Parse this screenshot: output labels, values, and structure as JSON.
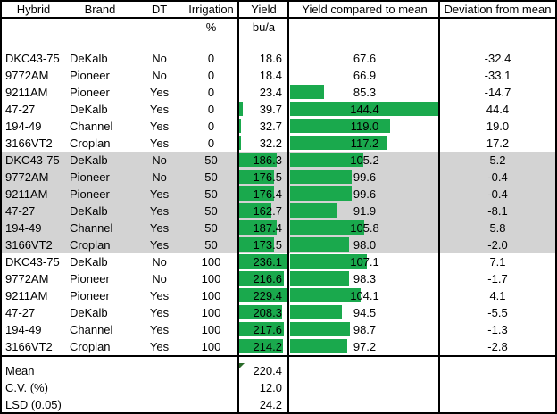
{
  "table": {
    "headers": [
      "Hybrid",
      "Brand",
      "DT",
      "Irrigation",
      "Yield",
      "Yield compared to mean",
      "Deviation from mean"
    ],
    "units": {
      "irrigation": "%",
      "yield": "bu/a"
    },
    "rows": [
      {
        "hybrid": "DKC43-75",
        "brand": "DeKalb",
        "dt": "No",
        "irrigation": "0",
        "yield": "18.6",
        "compared": "67.6",
        "deviation": "-32.4",
        "shaded": false
      },
      {
        "hybrid": "9772AM",
        "brand": "Pioneer",
        "dt": "No",
        "irrigation": "0",
        "yield": "18.4",
        "compared": "66.9",
        "deviation": "-33.1",
        "shaded": false
      },
      {
        "hybrid": "9211AM",
        "brand": "Pioneer",
        "dt": "Yes",
        "irrigation": "0",
        "yield": "23.4",
        "compared": "85.3",
        "deviation": "-14.7",
        "shaded": false
      },
      {
        "hybrid": "47-27",
        "brand": "DeKalb",
        "dt": "Yes",
        "irrigation": "0",
        "yield": "39.7",
        "compared": "144.4",
        "deviation": "44.4",
        "shaded": false
      },
      {
        "hybrid": "194-49",
        "brand": "Channel",
        "dt": "Yes",
        "irrigation": "0",
        "yield": "32.7",
        "compared": "119.0",
        "deviation": "19.0",
        "shaded": false
      },
      {
        "hybrid": "3166VT2",
        "brand": "Croplan",
        "dt": "Yes",
        "irrigation": "0",
        "yield": "32.2",
        "compared": "117.2",
        "deviation": "17.2",
        "shaded": false
      },
      {
        "hybrid": "DKC43-75",
        "brand": "DeKalb",
        "dt": "No",
        "irrigation": "50",
        "yield": "186.3",
        "compared": "105.2",
        "deviation": "5.2",
        "shaded": true
      },
      {
        "hybrid": "9772AM",
        "brand": "Pioneer",
        "dt": "No",
        "irrigation": "50",
        "yield": "176.5",
        "compared": "99.6",
        "deviation": "-0.4",
        "shaded": true
      },
      {
        "hybrid": "9211AM",
        "brand": "Pioneer",
        "dt": "Yes",
        "irrigation": "50",
        "yield": "176.4",
        "compared": "99.6",
        "deviation": "-0.4",
        "shaded": true
      },
      {
        "hybrid": "47-27",
        "brand": "DeKalb",
        "dt": "Yes",
        "irrigation": "50",
        "yield": "162.7",
        "compared": "91.9",
        "deviation": "-8.1",
        "shaded": true
      },
      {
        "hybrid": "194-49",
        "brand": "Channel",
        "dt": "Yes",
        "irrigation": "50",
        "yield": "187.4",
        "compared": "105.8",
        "deviation": "5.8",
        "shaded": true
      },
      {
        "hybrid": "3166VT2",
        "brand": "Croplan",
        "dt": "Yes",
        "irrigation": "50",
        "yield": "173.5",
        "compared": "98.0",
        "deviation": "-2.0",
        "shaded": true
      },
      {
        "hybrid": "DKC43-75",
        "brand": "DeKalb",
        "dt": "No",
        "irrigation": "100",
        "yield": "236.1",
        "compared": "107.1",
        "deviation": "7.1",
        "shaded": false
      },
      {
        "hybrid": "9772AM",
        "brand": "Pioneer",
        "dt": "No",
        "irrigation": "100",
        "yield": "216.6",
        "compared": "98.3",
        "deviation": "-1.7",
        "shaded": false
      },
      {
        "hybrid": "9211AM",
        "brand": "Pioneer",
        "dt": "Yes",
        "irrigation": "100",
        "yield": "229.4",
        "compared": "104.1",
        "deviation": "4.1",
        "shaded": false
      },
      {
        "hybrid": "47-27",
        "brand": "DeKalb",
        "dt": "Yes",
        "irrigation": "100",
        "yield": "208.3",
        "compared": "94.5",
        "deviation": "-5.5",
        "shaded": false
      },
      {
        "hybrid": "194-49",
        "brand": "Channel",
        "dt": "Yes",
        "irrigation": "100",
        "yield": "217.6",
        "compared": "98.7",
        "deviation": "-1.3",
        "shaded": false
      },
      {
        "hybrid": "3166VT2",
        "brand": "Croplan",
        "dt": "Yes",
        "irrigation": "100",
        "yield": "214.2",
        "compared": "97.2",
        "deviation": "-2.8",
        "shaded": false
      }
    ],
    "summary": [
      {
        "label": "Mean",
        "value": "220.4"
      },
      {
        "label": "C.V. (%)",
        "value": "12.0"
      },
      {
        "label": "LSD (0.05)",
        "value": "24.2"
      }
    ]
  },
  "bars": {
    "color": "#1aa94d",
    "yield_min": 18.4,
    "yield_max": 236.1,
    "compared_min": 66.9,
    "compared_max": 144.4
  },
  "colors": {
    "shaded_row": "#d3d3d3",
    "border": "#000000",
    "error_indicator": "#2a6b2a"
  }
}
